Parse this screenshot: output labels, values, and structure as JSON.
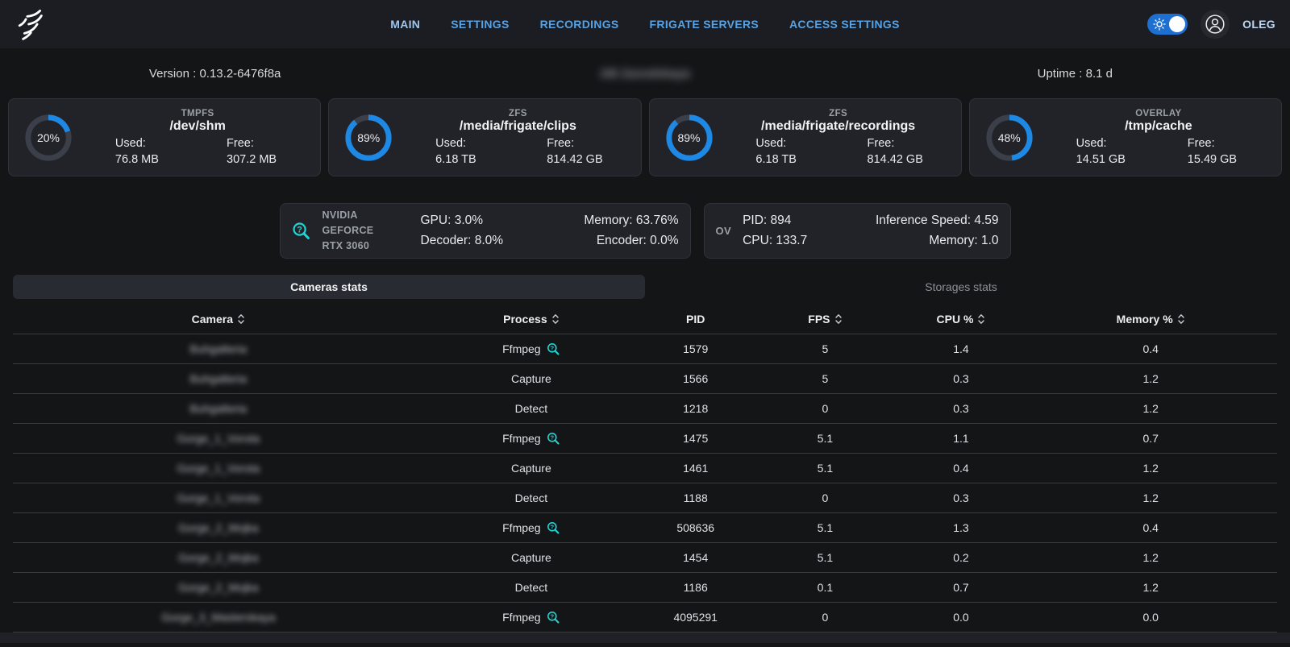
{
  "header": {
    "nav": [
      {
        "label": "MAIN",
        "active": true
      },
      {
        "label": "SETTINGS",
        "active": false
      },
      {
        "label": "RECORDINGS",
        "active": false
      },
      {
        "label": "FRIGATE SERVERS",
        "active": false
      },
      {
        "label": "ACCESS SETTINGS",
        "active": false
      }
    ],
    "user_name": "OLEG"
  },
  "info": {
    "version": "Version : 0.13.2-6476f8a",
    "server_name": "AB Zavodskaya",
    "uptime": "Uptime : 8.1 d"
  },
  "storage_cards": [
    {
      "type": "TMPFS",
      "path": "/dev/shm",
      "percent": 20,
      "used_label": "Used:",
      "free_label": "Free:",
      "used": "76.8 MB",
      "free": "307.2 MB"
    },
    {
      "type": "ZFS",
      "path": "/media/frigate/clips",
      "percent": 89,
      "used_label": "Used:",
      "free_label": "Free:",
      "used": "6.18 TB",
      "free": "814.42 GB"
    },
    {
      "type": "ZFS",
      "path": "/media/frigate/recordings",
      "percent": 89,
      "used_label": "Used:",
      "free_label": "Free:",
      "used": "6.18 TB",
      "free": "814.42 GB"
    },
    {
      "type": "OVERLAY",
      "path": "/tmp/cache",
      "percent": 48,
      "used_label": "Used:",
      "free_label": "Free:",
      "used": "14.51 GB",
      "free": "15.49 GB"
    }
  ],
  "gpu_card": {
    "name_line1": "NVIDIA GEFORCE",
    "name_line2": "RTX 3060",
    "gpu": "GPU: 3.0%",
    "decoder": "Decoder: 8.0%",
    "memory": "Memory: 63.76%",
    "encoder": "Encoder: 0.0%"
  },
  "detector_card": {
    "name": "OV",
    "pid": "PID: 894",
    "cpu": "CPU: 133.7",
    "inference": "Inference Speed: 4.59",
    "memory": "Memory: 1.0"
  },
  "tabs": {
    "cameras_label": "Cameras stats",
    "storages_label": "Storages stats"
  },
  "table": {
    "columns": [
      {
        "label": "Camera",
        "sortable": true
      },
      {
        "label": "Process",
        "sortable": true
      },
      {
        "label": "PID",
        "sortable": false
      },
      {
        "label": "FPS",
        "sortable": true
      },
      {
        "label": "CPU %",
        "sortable": true
      },
      {
        "label": "Memory %",
        "sortable": true
      }
    ],
    "rows": [
      {
        "camera": "Buhgalteria",
        "camera_blurred": true,
        "process": "Ffmpeg",
        "info_icon": true,
        "pid": "1579",
        "fps": "5",
        "cpu": "1.4",
        "memory": "0.4"
      },
      {
        "camera": "Buhgalteria",
        "camera_blurred": true,
        "process": "Capture",
        "info_icon": false,
        "pid": "1566",
        "fps": "5",
        "cpu": "0.3",
        "memory": "1.2"
      },
      {
        "camera": "Buhgalteria",
        "camera_blurred": true,
        "process": "Detect",
        "info_icon": false,
        "pid": "1218",
        "fps": "0",
        "cpu": "0.3",
        "memory": "1.2"
      },
      {
        "camera": "Gorge_1_Vorota",
        "camera_blurred": true,
        "process": "Ffmpeg",
        "info_icon": true,
        "pid": "1475",
        "fps": "5.1",
        "cpu": "1.1",
        "memory": "0.7"
      },
      {
        "camera": "Gorge_1_Vorota",
        "camera_blurred": true,
        "process": "Capture",
        "info_icon": false,
        "pid": "1461",
        "fps": "5.1",
        "cpu": "0.4",
        "memory": "1.2"
      },
      {
        "camera": "Gorge_1_Vorota",
        "camera_blurred": true,
        "process": "Detect",
        "info_icon": false,
        "pid": "1188",
        "fps": "0",
        "cpu": "0.3",
        "memory": "1.2"
      },
      {
        "camera": "Gorge_2_Mojka",
        "camera_blurred": true,
        "process": "Ffmpeg",
        "info_icon": true,
        "pid": "508636",
        "fps": "5.1",
        "cpu": "1.3",
        "memory": "0.4"
      },
      {
        "camera": "Gorge_2_Mojka",
        "camera_blurred": true,
        "process": "Capture",
        "info_icon": false,
        "pid": "1454",
        "fps": "5.1",
        "cpu": "0.2",
        "memory": "1.2"
      },
      {
        "camera": "Gorge_2_Mojka",
        "camera_blurred": true,
        "process": "Detect",
        "info_icon": false,
        "pid": "1186",
        "fps": "0.1",
        "cpu": "0.7",
        "memory": "1.2"
      },
      {
        "camera": "Gorge_3_Masterskaya",
        "camera_blurred": true,
        "process": "Ffmpeg",
        "info_icon": true,
        "pid": "4095291",
        "fps": "0",
        "cpu": "0.0",
        "memory": "0.0"
      }
    ]
  },
  "colors": {
    "accent_blue": "#1e88e5",
    "nav_blue": "#56a2e4",
    "icon_cyan": "#20d5d5",
    "card_bg": "#212329",
    "page_bg": "#141517"
  }
}
